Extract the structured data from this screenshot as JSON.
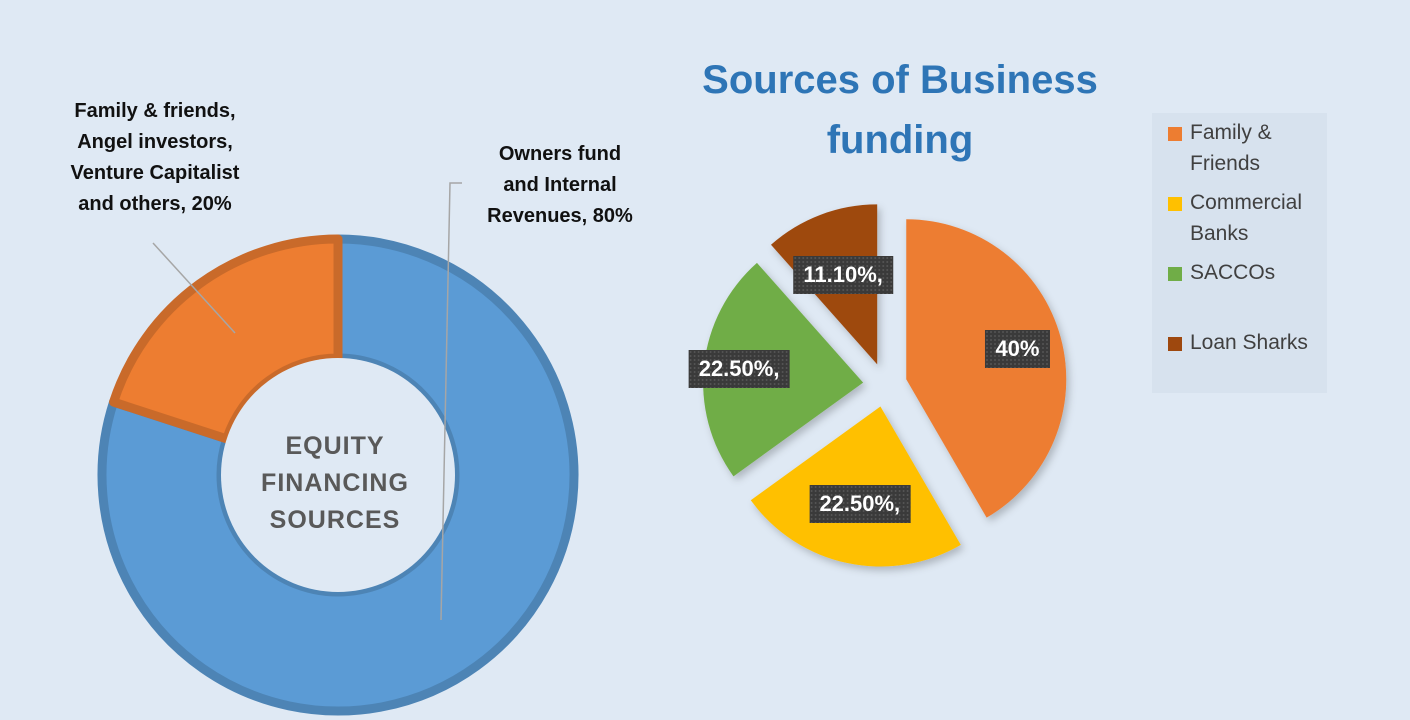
{
  "chart_data": [
    {
      "type": "pie",
      "variant": "donut",
      "center_label": "EQUITY FINANCING SOURCES",
      "slices": [
        {
          "label": "Owners fund and Internal Revenues, 80%",
          "value": 80,
          "color": "#5b9bd5"
        },
        {
          "label": "Family & friends, Angel investors, Venture Capitalist and others, 20%",
          "value": 20,
          "color": "#ed7d31"
        }
      ],
      "legend": "none",
      "data_label_style": "callout lines"
    },
    {
      "type": "pie",
      "variant": "exploded",
      "title": "Sources of Business funding",
      "slices": [
        {
          "label": "Family & Friends",
          "value": 40,
          "data_label": "40%",
          "color": "#ed7d31"
        },
        {
          "label": "Commercial Banks",
          "value": 22.5,
          "data_label": "22.50%,",
          "color": "#ffc000"
        },
        {
          "label": "SACCOs",
          "value": 22.5,
          "data_label": "22.50%,",
          "color": "#70ad47"
        },
        {
          "label": "Loan Sharks",
          "value": 11.1,
          "data_label": "11.10%,",
          "color": "#9e480e"
        }
      ],
      "legend": "right"
    }
  ],
  "legend_items": [
    {
      "label": "Family & Friends",
      "color": "#ed7d31"
    },
    {
      "label": "Commercial Banks",
      "color": "#ffc000"
    },
    {
      "label": "SACCOs",
      "color": "#70ad47"
    },
    {
      "label": "Loan Sharks",
      "color": "#9e480e"
    }
  ],
  "colors": {
    "background": "#dfe9f4",
    "title": "#2e75b6",
    "data_label_box": "#3a3a3a"
  }
}
